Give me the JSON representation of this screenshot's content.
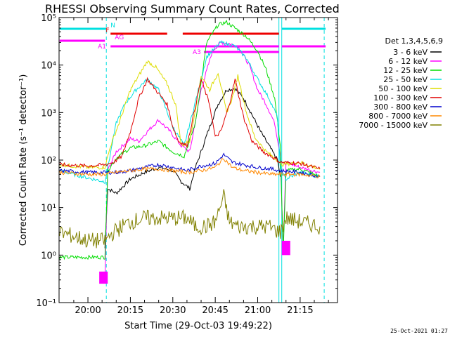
{
  "chart_data": {
    "type": "line",
    "title": "RHESSI Observing Summary Count Rates, Corrected",
    "ylabel": "Corrected Count Rate (s⁻¹ detector⁻¹)",
    "xlabel": "Start Time (29-Oct-03 19:49:22)",
    "yscale": "log",
    "ylim": [
      0.1,
      100000
    ],
    "xlim_minutes": [
      19.83,
      21.47
    ],
    "x_ticks": [
      "20:00",
      "20:15",
      "20:30",
      "20:45",
      "21:00",
      "21:15"
    ],
    "y_ticks": [
      "10⁻¹",
      "10⁰",
      "10¹",
      "10²",
      "10³",
      "10⁴",
      "10⁵"
    ],
    "legend_title": "Det 1,3,4,5,6,9",
    "legend_position": "right",
    "series": [
      {
        "name": "3 - 6 keV",
        "color": "#000000",
        "points": [
          [
            "20:06",
            1.4
          ],
          [
            "20:07",
            25
          ],
          [
            "20:10",
            20
          ],
          [
            "20:15",
            40
          ],
          [
            "20:20",
            55
          ],
          [
            "20:25",
            70
          ],
          [
            "20:30",
            60
          ],
          [
            "20:33",
            35
          ],
          [
            "20:36",
            25
          ],
          [
            "20:38",
            70
          ],
          [
            "20:40",
            150
          ],
          [
            "20:43",
            500
          ],
          [
            "20:46",
            1500
          ],
          [
            "20:49",
            3000
          ],
          [
            "20:52",
            3200
          ],
          [
            "20:55",
            2000
          ],
          [
            "20:58",
            900
          ],
          [
            "21:01",
            400
          ],
          [
            "21:04",
            200
          ],
          [
            "21:07",
            100
          ],
          [
            "21:08",
            45
          ]
        ]
      },
      {
        "name": "6 - 12 keV",
        "color": "#ff00ff",
        "points": [
          [
            "20:06",
            0.3
          ],
          [
            "20:07",
            60
          ],
          [
            "20:10",
            150
          ],
          [
            "20:13",
            220
          ],
          [
            "20:15",
            280
          ],
          [
            "20:18",
            250
          ],
          [
            "20:21",
            400
          ],
          [
            "20:25",
            700
          ],
          [
            "20:29",
            400
          ],
          [
            "20:33",
            200
          ],
          [
            "20:36",
            150
          ],
          [
            "20:40",
            3000
          ],
          [
            "20:44",
            20000
          ],
          [
            "20:47",
            30000
          ],
          [
            "20:50",
            28000
          ],
          [
            "20:53",
            25000
          ],
          [
            "20:57",
            10000
          ],
          [
            "21:00",
            3000
          ],
          [
            "21:03",
            1500
          ],
          [
            "21:06",
            600
          ],
          [
            "21:08",
            130
          ],
          [
            "21:09",
            1.5
          ],
          [
            "21:10",
            90
          ],
          [
            "21:15",
            70
          ],
          [
            "21:22",
            55
          ]
        ]
      },
      {
        "name": "12 - 25 keV",
        "color": "#00dd00",
        "points": [
          [
            "19:50",
            0.9
          ],
          [
            "20:00",
            0.9
          ],
          [
            "20:06",
            0.9
          ],
          [
            "20:07",
            60
          ],
          [
            "20:10",
            110
          ],
          [
            "20:15",
            180
          ],
          [
            "20:20",
            200
          ],
          [
            "20:25",
            250
          ],
          [
            "20:30",
            150
          ],
          [
            "20:34",
            120
          ],
          [
            "20:38",
            600
          ],
          [
            "20:42",
            30000
          ],
          [
            "20:46",
            70000
          ],
          [
            "20:49",
            80000
          ],
          [
            "20:52",
            60000
          ],
          [
            "20:56",
            40000
          ],
          [
            "21:00",
            20000
          ],
          [
            "21:03",
            8000
          ],
          [
            "21:06",
            2000
          ],
          [
            "21:08",
            200
          ],
          [
            "21:09",
            1
          ],
          [
            "21:10",
            60
          ],
          [
            "21:15",
            65
          ],
          [
            "21:22",
            45
          ]
        ]
      },
      {
        "name": "25 - 50 keV",
        "color": "#00e0e0",
        "points": [
          [
            "19:50",
            60
          ],
          [
            "19:58",
            45
          ],
          [
            "20:06",
            35
          ],
          [
            "20:07",
            70
          ],
          [
            "20:10",
            600
          ],
          [
            "20:13",
            1500
          ],
          [
            "20:17",
            3000
          ],
          [
            "20:21",
            5000
          ],
          [
            "20:25",
            3000
          ],
          [
            "20:30",
            500
          ],
          [
            "20:34",
            200
          ],
          [
            "20:37",
            1000
          ],
          [
            "20:42",
            15000
          ],
          [
            "20:47",
            30000
          ],
          [
            "20:52",
            25000
          ],
          [
            "20:56",
            14000
          ],
          [
            "21:00",
            5000
          ],
          [
            "21:04",
            2000
          ],
          [
            "21:07",
            800
          ],
          [
            "21:08",
            60
          ],
          [
            "21:10",
            40
          ],
          [
            "21:15",
            55
          ],
          [
            "21:22",
            45
          ]
        ]
      },
      {
        "name": "50 - 100 keV",
        "color": "#dddd00",
        "points": [
          [
            "19:50",
            80
          ],
          [
            "20:00",
            70
          ],
          [
            "20:06",
            70
          ],
          [
            "20:08",
            200
          ],
          [
            "20:11",
            600
          ],
          [
            "20:15",
            3000
          ],
          [
            "20:18",
            6000
          ],
          [
            "20:21",
            12000
          ],
          [
            "20:24",
            9000
          ],
          [
            "20:28",
            4000
          ],
          [
            "20:31",
            1500
          ],
          [
            "20:33",
            200
          ],
          [
            "20:36",
            250
          ],
          [
            "20:40",
            6000
          ],
          [
            "20:43",
            3000
          ],
          [
            "20:46",
            7000
          ],
          [
            "20:49",
            1000
          ],
          [
            "20:51",
            2000
          ],
          [
            "20:53",
            6000
          ],
          [
            "20:56",
            1000
          ],
          [
            "20:59",
            300
          ],
          [
            "21:03",
            150
          ],
          [
            "21:07",
            100
          ],
          [
            "21:08",
            80
          ],
          [
            "21:15",
            90
          ],
          [
            "21:22",
            65
          ]
        ]
      },
      {
        "name": "100 - 300 keV",
        "color": "#e00000",
        "points": [
          [
            "19:50",
            80
          ],
          [
            "20:00",
            75
          ],
          [
            "20:06",
            80
          ],
          [
            "20:09",
            90
          ],
          [
            "20:12",
            120
          ],
          [
            "20:15",
            400
          ],
          [
            "20:18",
            2000
          ],
          [
            "20:21",
            5000
          ],
          [
            "20:24",
            3000
          ],
          [
            "20:28",
            1500
          ],
          [
            "20:30",
            500
          ],
          [
            "20:32",
            250
          ],
          [
            "20:35",
            200
          ],
          [
            "20:40",
            5000
          ],
          [
            "20:43",
            1500
          ],
          [
            "20:45",
            300
          ],
          [
            "20:47",
            400
          ],
          [
            "20:50",
            1500
          ],
          [
            "20:52",
            5000
          ],
          [
            "20:55",
            800
          ],
          [
            "20:58",
            250
          ],
          [
            "21:02",
            150
          ],
          [
            "21:07",
            100
          ],
          [
            "21:08",
            90
          ],
          [
            "21:15",
            85
          ],
          [
            "21:22",
            65
          ]
        ]
      },
      {
        "name": "300 - 800 keV",
        "color": "#0000cc",
        "points": [
          [
            "19:50",
            60
          ],
          [
            "20:00",
            55
          ],
          [
            "20:06",
            55
          ],
          [
            "20:10",
            55
          ],
          [
            "20:15",
            60
          ],
          [
            "20:20",
            70
          ],
          [
            "20:25",
            80
          ],
          [
            "20:30",
            70
          ],
          [
            "20:35",
            60
          ],
          [
            "20:40",
            75
          ],
          [
            "20:45",
            85
          ],
          [
            "20:48",
            130
          ],
          [
            "20:51",
            90
          ],
          [
            "20:55",
            80
          ],
          [
            "21:00",
            70
          ],
          [
            "21:05",
            65
          ],
          [
            "21:08",
            60
          ],
          [
            "21:15",
            55
          ],
          [
            "21:22",
            45
          ]
        ]
      },
      {
        "name": "800 - 7000 keV",
        "color": "#ff8800",
        "points": [
          [
            "19:50",
            55
          ],
          [
            "20:00",
            50
          ],
          [
            "20:06",
            50
          ],
          [
            "20:10",
            55
          ],
          [
            "20:15",
            60
          ],
          [
            "20:20",
            65
          ],
          [
            "20:25",
            65
          ],
          [
            "20:30",
            60
          ],
          [
            "20:35",
            55
          ],
          [
            "20:40",
            60
          ],
          [
            "20:45",
            70
          ],
          [
            "20:48",
            110
          ],
          [
            "20:51",
            70
          ],
          [
            "20:55",
            60
          ],
          [
            "21:00",
            55
          ],
          [
            "21:05",
            50
          ],
          [
            "21:08",
            50
          ],
          [
            "21:15",
            50
          ],
          [
            "21:22",
            45
          ]
        ]
      },
      {
        "name": "7000 - 15000 keV",
        "color": "#808000",
        "points": [
          [
            "19:50",
            3
          ],
          [
            "19:55",
            2.5
          ],
          [
            "20:00",
            2
          ],
          [
            "20:06",
            2
          ],
          [
            "20:09",
            3
          ],
          [
            "20:12",
            4
          ],
          [
            "20:15",
            5
          ],
          [
            "20:20",
            6
          ],
          [
            "20:25",
            6
          ],
          [
            "20:30",
            6
          ],
          [
            "20:35",
            6
          ],
          [
            "20:38",
            4
          ],
          [
            "20:42",
            4
          ],
          [
            "20:45",
            5
          ],
          [
            "20:48",
            17
          ],
          [
            "20:50",
            5
          ],
          [
            "20:53",
            4
          ],
          [
            "20:58",
            4
          ],
          [
            "21:04",
            4
          ],
          [
            "21:08",
            3
          ],
          [
            "21:10",
            6
          ],
          [
            "21:15",
            5
          ],
          [
            "21:22",
            4
          ]
        ]
      }
    ],
    "flag_labels": [
      "N",
      "F",
      "AG",
      "A1",
      "A3"
    ],
    "timestamp": "25-Oct-2021 01:27"
  }
}
